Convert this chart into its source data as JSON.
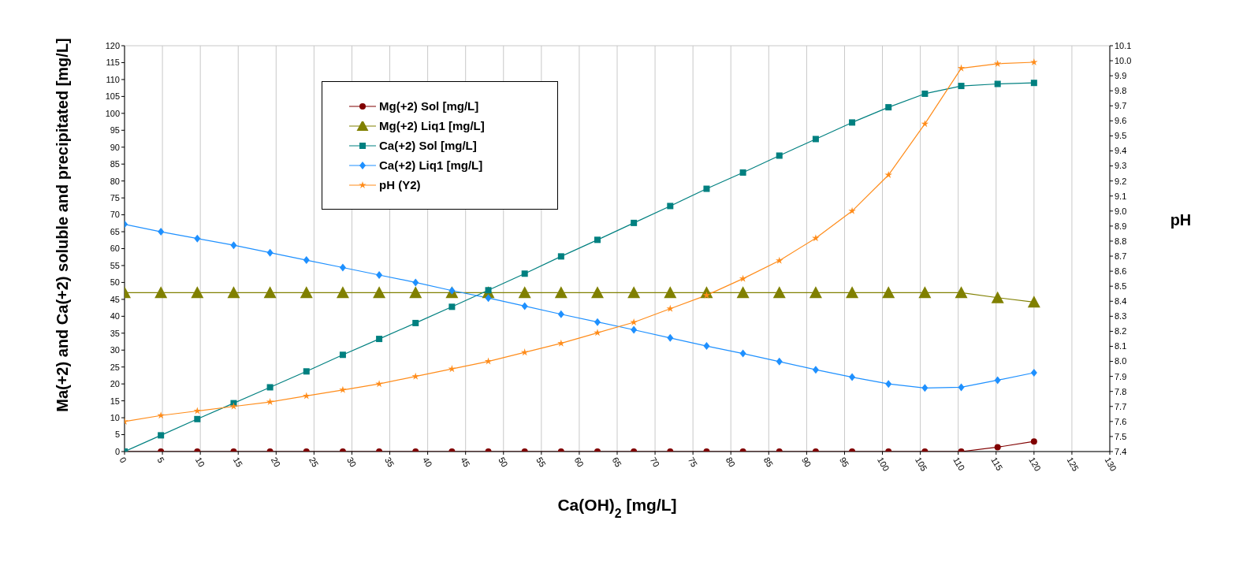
{
  "chart_data": {
    "type": "line",
    "xlabel": "Ca(OH)$_{2}$ [mg/L]",
    "ylabel": "Ma(+2) and Ca(+2) soluble and precipitated [mg/L]",
    "y2label": "pH",
    "x": [
      0,
      4.8,
      9.6,
      14.4,
      19.2,
      24,
      28.8,
      33.6,
      38.4,
      43.2,
      48,
      52.8,
      57.6,
      62.4,
      67.2,
      72,
      76.8,
      81.6,
      86.4,
      91.2,
      96,
      100.8,
      105.6,
      110.4,
      115.2,
      120
    ],
    "series": [
      {
        "name": "Mg(+2) Sol [mg/L]",
        "color": "#800000",
        "marker": "circle",
        "values": [
          0,
          0,
          0,
          0,
          0,
          0,
          0,
          0,
          0,
          0,
          0,
          0,
          0,
          0,
          0,
          0,
          0,
          0,
          0,
          0,
          0,
          0,
          0,
          0,
          1.3,
          3
        ]
      },
      {
        "name": "Mg(+2) Liq1 [mg/L]",
        "color": "#808000",
        "marker": "triangle",
        "values": [
          47,
          47,
          47,
          47,
          47,
          47,
          47,
          47,
          47,
          47,
          47,
          47,
          47,
          47,
          47,
          47,
          47,
          47,
          47,
          47,
          47,
          47,
          47,
          47,
          45.5,
          44.2
        ]
      },
      {
        "name": "Ca(+2) Sol [mg/L]",
        "color": "#008080",
        "marker": "square",
        "values": [
          0,
          4.8,
          9.6,
          14.3,
          19,
          23.7,
          28.6,
          33.3,
          38,
          42.8,
          47.7,
          52.6,
          57.7,
          62.6,
          67.6,
          72.6,
          77.7,
          82.5,
          87.5,
          92.4,
          97.3,
          101.8,
          105.8,
          108.1,
          108.7,
          109
        ]
      },
      {
        "name": "Ca(+2) Liq1 [mg/L]",
        "color": "#1e90ff",
        "marker": "diamond",
        "values": [
          67.2,
          65,
          63,
          61,
          58.8,
          56.6,
          54.4,
          52.2,
          50,
          47.6,
          45.4,
          43,
          40.6,
          38.3,
          36,
          33.6,
          31.2,
          29,
          26.6,
          24.2,
          22,
          20,
          18.8,
          19,
          21.1,
          23.3
        ]
      },
      {
        "name": "pH (Y2)",
        "color": "#ff8c1a",
        "marker": "star",
        "axis": "y2",
        "values": [
          7.6,
          7.64,
          7.67,
          7.7,
          7.73,
          7.77,
          7.81,
          7.85,
          7.9,
          7.95,
          8.0,
          8.06,
          8.12,
          8.19,
          8.26,
          8.35,
          8.44,
          8.55,
          8.67,
          8.82,
          9.0,
          9.24,
          9.58,
          9.95,
          9.98,
          9.99
        ]
      }
    ],
    "xlim": [
      0,
      130
    ],
    "xticks": [
      0,
      5,
      10,
      15,
      20,
      25,
      30,
      35,
      40,
      45,
      50,
      55,
      60,
      65,
      70,
      75,
      80,
      85,
      90,
      95,
      100,
      105,
      110,
      115,
      120,
      125,
      130
    ],
    "ylim": [
      0,
      120
    ],
    "yticks": [
      0,
      5,
      10,
      15,
      20,
      25,
      30,
      35,
      40,
      45,
      50,
      55,
      60,
      65,
      70,
      75,
      80,
      85,
      90,
      95,
      100,
      105,
      110,
      115,
      120
    ],
    "y2lim": [
      7.4,
      10.1
    ],
    "y2ticks": [
      7.4,
      7.5,
      7.6,
      7.7,
      7.8,
      7.9,
      {
        "value": 8,
        "label": "8.0"
      },
      8.1,
      8.2,
      8.3,
      8.4,
      8.5,
      8.6,
      8.7,
      8.8,
      8.9,
      {
        "value": 9,
        "label": "9.0"
      },
      9.1,
      9.2,
      9.3,
      9.4,
      9.5,
      9.6,
      9.7,
      9.8,
      9.9,
      {
        "value": 10,
        "label": "10.0"
      },
      10.1
    ],
    "grid": true,
    "legend": "top left"
  }
}
